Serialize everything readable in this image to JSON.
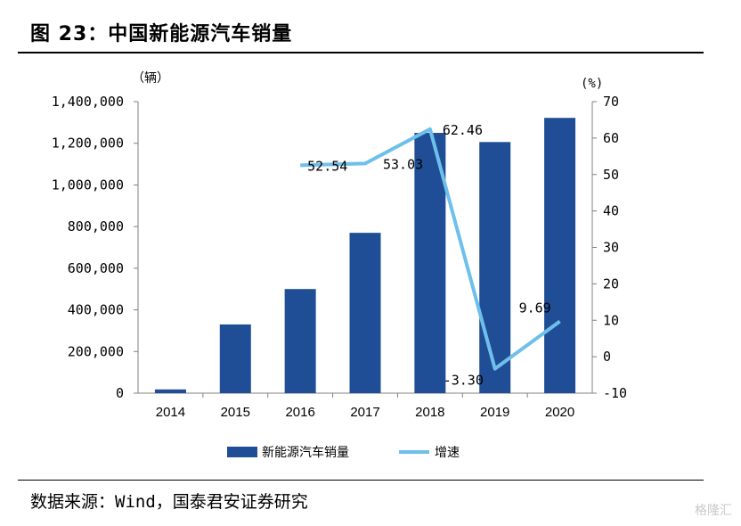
{
  "header": {
    "title": "图 23：中国新能源汽车销量"
  },
  "footer": {
    "source": "数据来源：Wind，国泰君安证券研究",
    "watermark": "格隆汇"
  },
  "chart_data": {
    "type": "bar+line",
    "title": "图 23：中国新能源汽车销量",
    "categories": [
      "2014",
      "2015",
      "2016",
      "2017",
      "2018",
      "2019",
      "2020"
    ],
    "left_axis": {
      "unit": "（辆）",
      "ylim": [
        0,
        1400000
      ],
      "ticks": [
        "0",
        "200,000",
        "400,000",
        "600,000",
        "800,000",
        "1,000,000",
        "1,200,000",
        "1,400,000"
      ]
    },
    "right_axis": {
      "unit": "(%)",
      "ylim": [
        -10,
        70
      ],
      "ticks": [
        "-10",
        "0",
        "10",
        "20",
        "30",
        "40",
        "50",
        "60",
        "70"
      ]
    },
    "series": [
      {
        "name": "新能源汽车销量",
        "type": "bar",
        "axis": "left",
        "color": "#1f4e96",
        "values": [
          18000,
          330000,
          500000,
          770000,
          1250000,
          1206000,
          1322000
        ]
      },
      {
        "name": "增速",
        "type": "line",
        "axis": "right",
        "color": "#6ec0ea",
        "values": [
          null,
          null,
          52.54,
          53.03,
          62.46,
          -3.3,
          9.69
        ],
        "labels": [
          null,
          null,
          "52.54",
          "53.03",
          "62.46",
          "-3.30",
          "9.69"
        ]
      }
    ],
    "legend": {
      "position": "bottom"
    },
    "grid": false
  }
}
